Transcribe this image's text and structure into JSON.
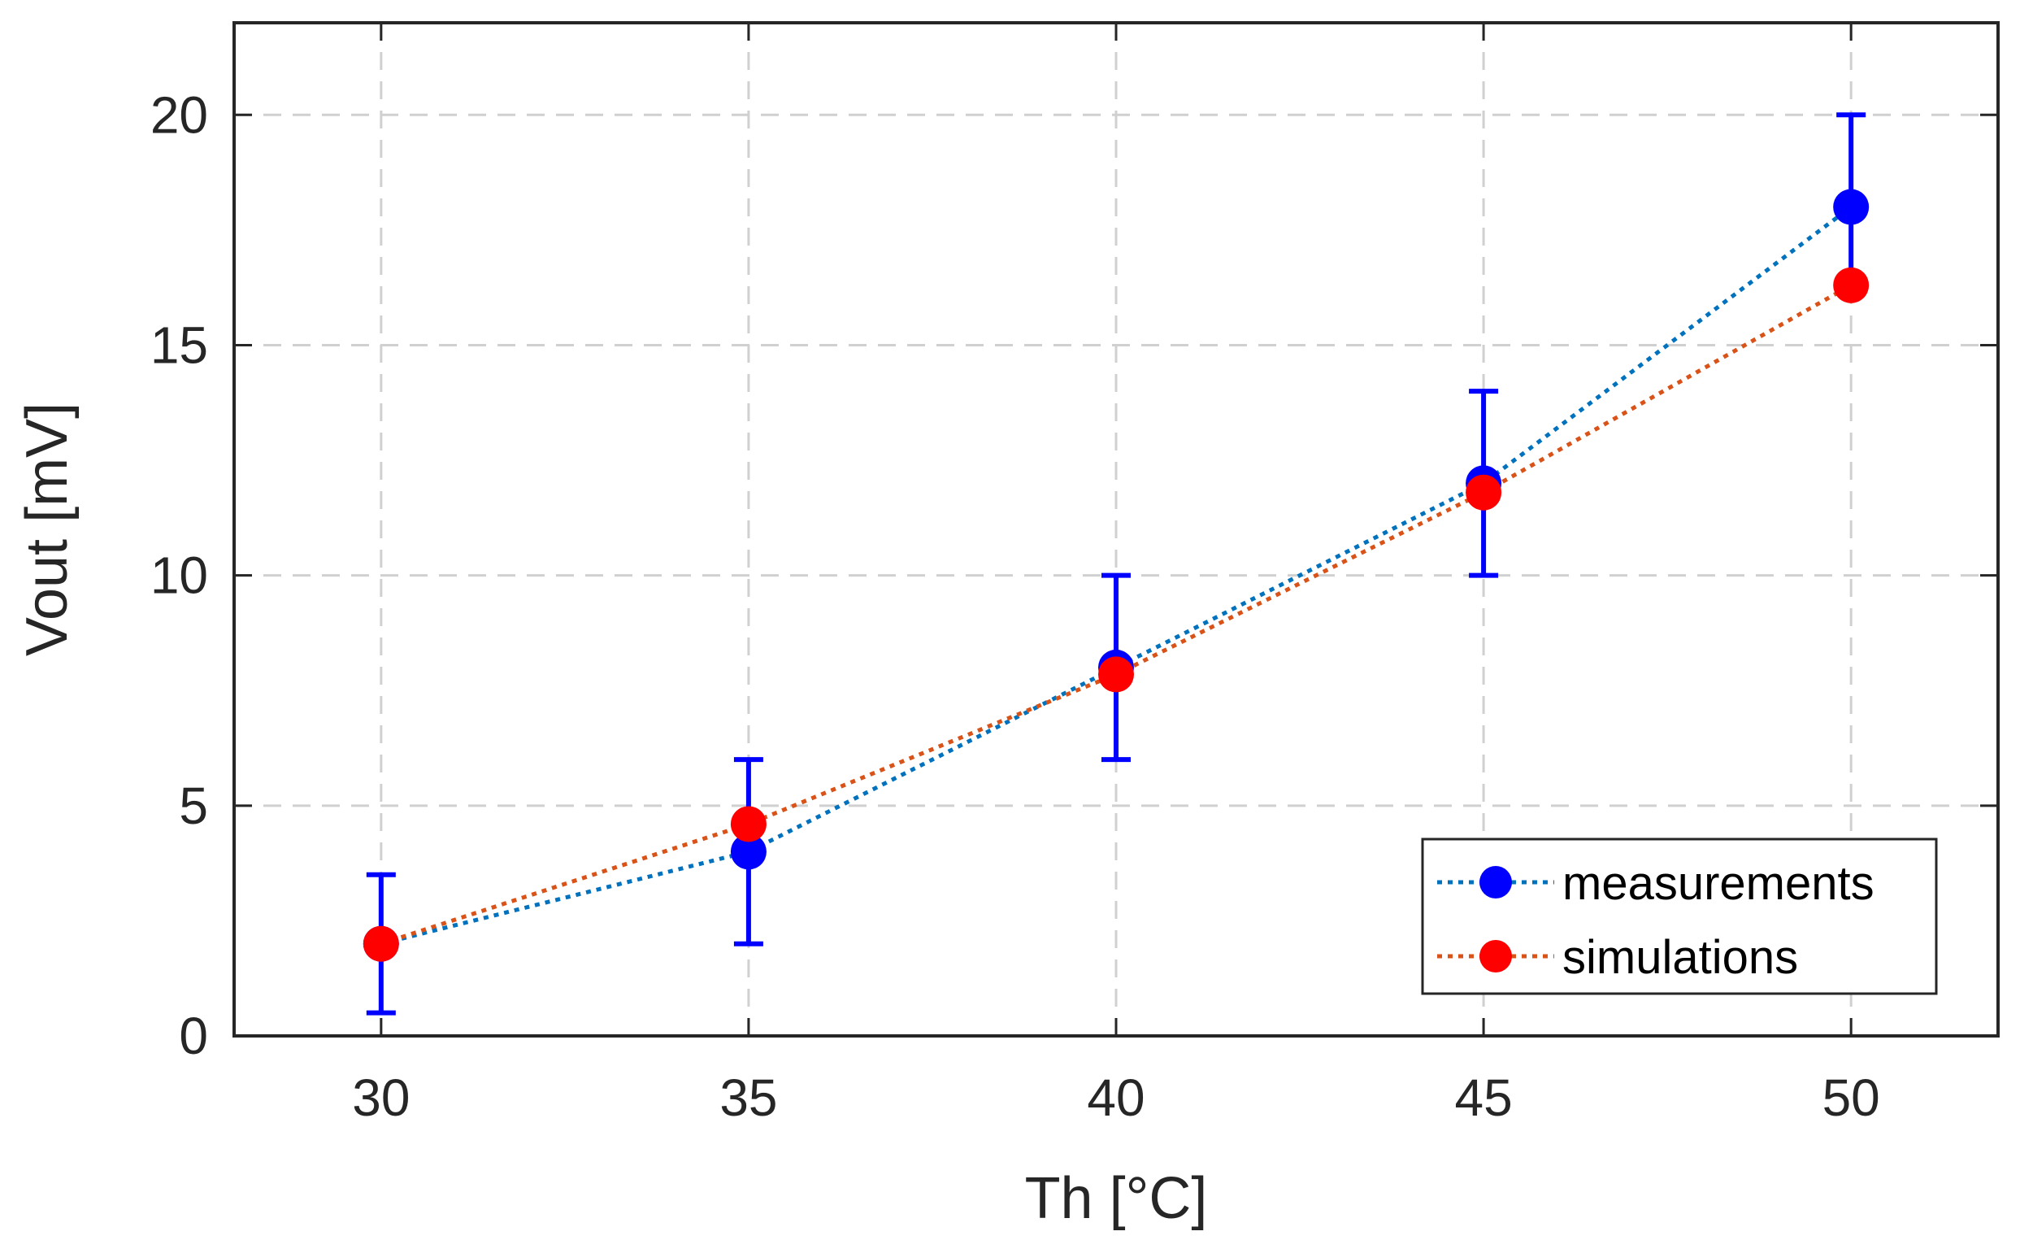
{
  "chart_data": {
    "type": "line",
    "title": "",
    "xlabel": "Th [°C]",
    "ylabel": "Vout [mV]",
    "xlim": [
      28,
      52
    ],
    "ylim": [
      0,
      22
    ],
    "grid": true,
    "x": [
      30,
      35,
      40,
      45,
      50
    ],
    "x_ticks": [
      "30",
      "35",
      "40",
      "45",
      "50"
    ],
    "y_ticks": [
      "0",
      "5",
      "10",
      "15",
      "20"
    ],
    "y_tick_values": [
      0,
      5,
      10,
      15,
      20
    ],
    "legend_position": "bottom-right",
    "series": [
      {
        "name": "measurements",
        "values": [
          2,
          4,
          8,
          12,
          18
        ],
        "error_low": [
          0.5,
          2,
          6,
          10,
          16.2
        ],
        "error_high": [
          3.5,
          6,
          10,
          14,
          20
        ],
        "line_color": "#0072BD",
        "marker_color": "#0000FF",
        "error_color": "#0000FF"
      },
      {
        "name": "simulations",
        "values": [
          2,
          4.6,
          7.85,
          11.8,
          16.3
        ],
        "line_color": "#D95319",
        "marker_color": "#FF0000"
      }
    ]
  }
}
